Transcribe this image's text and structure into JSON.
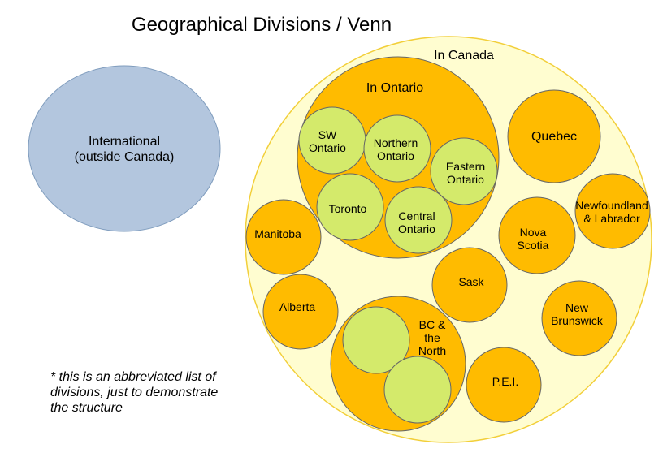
{
  "title": "Geographical Divisions / Venn",
  "note": [
    "* this is an abbreviated list of",
    "divisions, just to demonstrate",
    "the structure"
  ],
  "colors": {
    "international_fill": "#b3c6de",
    "international_stroke": "#7f9cbd",
    "canada_fill": "#fffdd0",
    "canada_stroke": "#f2cf3a",
    "province_fill": "#ffbb00",
    "province_stroke": "#666666",
    "region_fill": "#d4ea6b",
    "region_stroke": "#666666"
  },
  "international": {
    "lines": [
      "International",
      "(outside Canada)"
    ]
  },
  "canada": {
    "label": "In Canada"
  },
  "ontario": {
    "label": "In Ontario",
    "regions": [
      {
        "id": "sw-ontario",
        "lines": [
          "SW",
          "Ontario"
        ]
      },
      {
        "id": "northern-ontario",
        "lines": [
          "Northern",
          "Ontario"
        ]
      },
      {
        "id": "eastern-ontario",
        "lines": [
          "Eastern",
          "Ontario"
        ]
      },
      {
        "id": "toronto",
        "lines": [
          "Toronto"
        ]
      },
      {
        "id": "central-ontario",
        "lines": [
          "Central",
          "Ontario"
        ]
      }
    ]
  },
  "provinces": [
    {
      "id": "quebec",
      "lines": [
        "Quebec"
      ]
    },
    {
      "id": "newfoundland-labrador",
      "lines": [
        "Newfoundland",
        "& Labrador"
      ]
    },
    {
      "id": "nova-scotia",
      "lines": [
        "Nova",
        "Scotia"
      ]
    },
    {
      "id": "manitoba",
      "lines": [
        "Manitoba"
      ]
    },
    {
      "id": "sask",
      "lines": [
        "Sask"
      ]
    },
    {
      "id": "alberta",
      "lines": [
        "Alberta"
      ]
    },
    {
      "id": "new-brunswick",
      "lines": [
        "New",
        "Brunswick"
      ]
    },
    {
      "id": "pei",
      "lines": [
        "P.E.I."
      ]
    }
  ],
  "bc": {
    "lines": [
      "BC &",
      "the",
      "North"
    ],
    "regions": [
      {
        "id": "bc-region-1",
        "lines": []
      },
      {
        "id": "bc-region-2",
        "lines": []
      }
    ]
  }
}
